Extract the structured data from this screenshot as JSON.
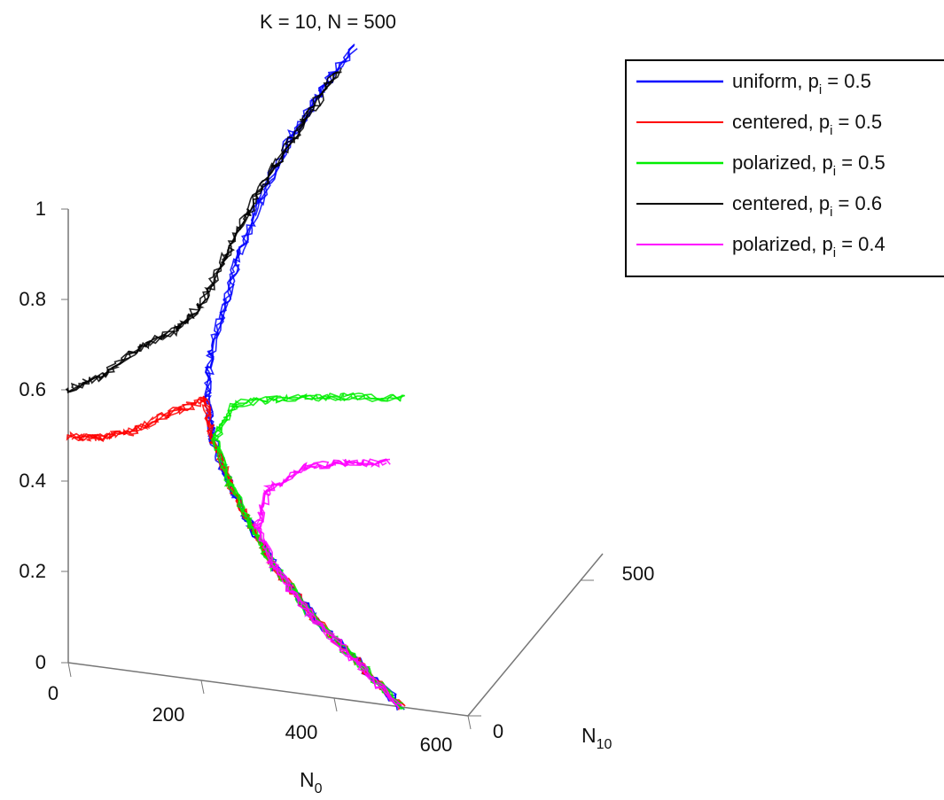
{
  "chart_data": {
    "type": "line",
    "projection": "3d",
    "title": "K = 10, N = 500",
    "axes": {
      "x": {
        "label": "N",
        "label_sub": "0",
        "range": [
          0,
          600
        ],
        "ticks": [
          "0",
          "200",
          "400",
          "600"
        ]
      },
      "y": {
        "label": "N",
        "label_sub": "10",
        "range": [
          0,
          500
        ],
        "ticks": [
          "0",
          "500"
        ]
      },
      "z": {
        "label": "",
        "range": [
          0,
          1
        ],
        "ticks": [
          "0",
          "0.2",
          "0.4",
          "0.6",
          "0.8",
          "1"
        ]
      }
    },
    "legend": {
      "placement": "top-right"
    },
    "series": [
      {
        "name": "uniform, p = 0.5",
        "legend_main": "uniform, p",
        "legend_sub": "i",
        "legend_tail": " = 0.5",
        "color": "#0000ff",
        "path": [
          [
            500,
            0,
            0
          ],
          [
            430,
            10,
            0.08
          ],
          [
            360,
            20,
            0.16
          ],
          [
            300,
            30,
            0.25
          ],
          [
            260,
            40,
            0.33
          ],
          [
            225,
            50,
            0.41
          ],
          [
            200,
            50,
            0.5
          ],
          [
            185,
            70,
            0.58
          ],
          [
            180,
            100,
            0.66
          ],
          [
            185,
            150,
            0.74
          ],
          [
            190,
            200,
            0.82
          ],
          [
            200,
            260,
            0.9
          ],
          [
            220,
            330,
            1.0
          ],
          [
            240,
            400,
            1.06
          ],
          [
            265,
            480,
            1.12
          ]
        ]
      },
      {
        "name": "centered, p = 0.5",
        "legend_main": "centered, p",
        "legend_sub": "i",
        "legend_tail": " = 0.5",
        "color": "#ff0000",
        "path": [
          [
            0,
            0,
            0.5
          ],
          [
            40,
            5,
            0.5
          ],
          [
            90,
            10,
            0.52
          ],
          [
            140,
            25,
            0.56
          ],
          [
            185,
            60,
            0.58
          ],
          [
            200,
            50,
            0.5
          ],
          [
            225,
            50,
            0.41
          ],
          [
            260,
            40,
            0.33
          ],
          [
            300,
            30,
            0.25
          ],
          [
            360,
            20,
            0.16
          ],
          [
            430,
            10,
            0.08
          ],
          [
            500,
            0,
            0
          ]
        ]
      },
      {
        "name": "polarized, p = 0.5",
        "legend_main": "polarized, p",
        "legend_sub": "i",
        "legend_tail": " = 0.5",
        "color": "#00ee00",
        "path": [
          [
            500,
            0,
            0
          ],
          [
            430,
            10,
            0.08
          ],
          [
            360,
            20,
            0.16
          ],
          [
            300,
            30,
            0.25
          ],
          [
            260,
            40,
            0.33
          ],
          [
            225,
            50,
            0.41
          ],
          [
            200,
            60,
            0.5
          ],
          [
            220,
            90,
            0.56
          ],
          [
            290,
            100,
            0.58
          ],
          [
            380,
            100,
            0.6
          ],
          [
            470,
            90,
            0.62
          ]
        ]
      },
      {
        "name": "centered, p = 0.6",
        "legend_main": "centered, p",
        "legend_sub": "i",
        "legend_tail": " = 0.6",
        "color": "#000000",
        "path": [
          [
            0,
            0,
            0.6
          ],
          [
            50,
            10,
            0.64
          ],
          [
            100,
            20,
            0.7
          ],
          [
            150,
            40,
            0.74
          ],
          [
            175,
            70,
            0.78
          ],
          [
            185,
            150,
            0.84
          ],
          [
            195,
            220,
            0.9
          ],
          [
            210,
            290,
            0.96
          ],
          [
            230,
            360,
            1.02
          ],
          [
            255,
            440,
            1.09
          ]
        ]
      },
      {
        "name": "polarized, p = 0.4",
        "legend_main": "polarized, p",
        "legend_sub": "i",
        "legend_tail": " = 0.4",
        "color": "#ff00ff",
        "path": [
          [
            500,
            0,
            0
          ],
          [
            430,
            10,
            0.08
          ],
          [
            360,
            20,
            0.16
          ],
          [
            300,
            30,
            0.25
          ],
          [
            270,
            40,
            0.33
          ],
          [
            280,
            60,
            0.4
          ],
          [
            330,
            75,
            0.45
          ],
          [
            390,
            80,
            0.47
          ],
          [
            450,
            80,
            0.48
          ]
        ]
      }
    ]
  }
}
